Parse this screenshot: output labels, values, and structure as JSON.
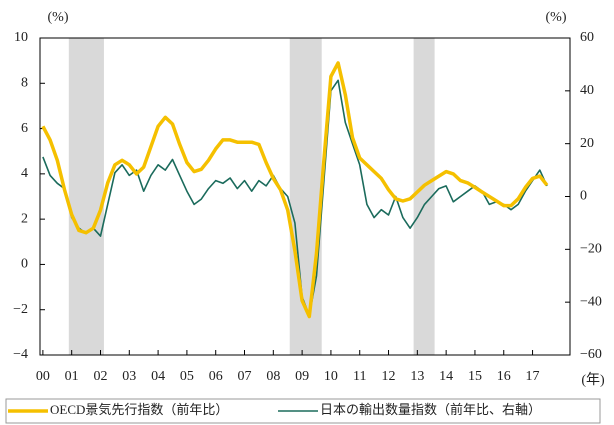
{
  "chart_data": {
    "type": "line",
    "y_unit": "(%)",
    "y2_unit": "(%)",
    "x_unit": "(年)",
    "xlim": [
      1999.9,
      2018.3
    ],
    "xticks": [
      {
        "value": 2000,
        "label": "00"
      },
      {
        "value": 2001,
        "label": "01"
      },
      {
        "value": 2002,
        "label": "02"
      },
      {
        "value": 2003,
        "label": "03"
      },
      {
        "value": 2004,
        "label": "04"
      },
      {
        "value": 2005,
        "label": "05"
      },
      {
        "value": 2006,
        "label": "06"
      },
      {
        "value": 2007,
        "label": "07"
      },
      {
        "value": 2008,
        "label": "08"
      },
      {
        "value": 2009,
        "label": "09"
      },
      {
        "value": 2010,
        "label": "10"
      },
      {
        "value": 2011,
        "label": "11"
      },
      {
        "value": 2012,
        "label": "12"
      },
      {
        "value": 2013,
        "label": "13"
      },
      {
        "value": 2014,
        "label": "14"
      },
      {
        "value": 2015,
        "label": "15"
      },
      {
        "value": 2016,
        "label": "16"
      },
      {
        "value": 2017,
        "label": "17"
      }
    ],
    "ylim": [
      -4,
      10
    ],
    "yticks": [
      {
        "value": -4,
        "label": "−4"
      },
      {
        "value": -2,
        "label": "−2"
      },
      0,
      2,
      4,
      6,
      8,
      10
    ],
    "y2lim": [
      -60,
      60
    ],
    "y2ticks": [
      {
        "value": -60,
        "label": "−60"
      },
      {
        "value": -40,
        "label": "−40"
      },
      {
        "value": -20,
        "label": "−20"
      },
      0,
      20,
      40,
      60
    ],
    "shade_color": "#d9d9d9",
    "shaded_periods": [
      [
        2000.9,
        2002.12
      ],
      [
        2008.57,
        2009.68
      ],
      [
        2012.87,
        2013.6
      ]
    ],
    "x": [
      2000,
      2000.25,
      2000.5,
      2000.75,
      2001,
      2001.25,
      2001.5,
      2001.75,
      2002,
      2002.25,
      2002.5,
      2002.75,
      2003,
      2003.25,
      2003.5,
      2003.75,
      2004,
      2004.25,
      2004.5,
      2004.75,
      2005,
      2005.25,
      2005.5,
      2005.75,
      2006,
      2006.25,
      2006.5,
      2006.75,
      2007,
      2007.25,
      2007.5,
      2007.75,
      2008,
      2008.25,
      2008.5,
      2008.75,
      2009,
      2009.25,
      2009.5,
      2009.75,
      2010,
      2010.25,
      2010.5,
      2010.75,
      2011,
      2011.25,
      2011.5,
      2011.75,
      2012,
      2012.25,
      2012.5,
      2012.75,
      2013,
      2013.25,
      2013.5,
      2013.75,
      2014,
      2014.25,
      2014.5,
      2014.75,
      2015,
      2015.25,
      2015.5,
      2015.75,
      2016,
      2016.25,
      2016.5,
      2016.75,
      2017,
      2017.25,
      2017.5
    ],
    "series": [
      {
        "name": "OECD景気先行指数（前年比）",
        "color": "#f5c000",
        "width": 3.5,
        "values": [
          6.1,
          5.5,
          4.6,
          3.3,
          2.2,
          1.5,
          1.4,
          1.6,
          2.4,
          3.6,
          4.4,
          4.6,
          4.4,
          4.0,
          4.3,
          5.2,
          6.1,
          6.5,
          6.2,
          5.3,
          4.5,
          4.1,
          4.2,
          4.6,
          5.1,
          5.5,
          5.5,
          5.4,
          5.4,
          5.4,
          5.3,
          4.5,
          3.8,
          3.3,
          2.4,
          0.6,
          -1.6,
          -2.3,
          0.5,
          4.5,
          8.3,
          8.9,
          7.5,
          5.6,
          4.7,
          4.4,
          4.1,
          3.8,
          3.3,
          2.9,
          2.8,
          2.9,
          3.2,
          3.5,
          3.7,
          3.9,
          4.1,
          4.0,
          3.7,
          3.6,
          3.4,
          3.2,
          3.0,
          2.8,
          2.6,
          2.6,
          2.9,
          3.4,
          3.8,
          3.9,
          3.5
        ]
      },
      {
        "name": "日本の輸出数量指数（前年比、右軸）",
        "color": "#1b6b5c",
        "width": 1.6,
        "axis": "y2",
        "values": [
          15,
          8,
          5,
          3,
          -8,
          -12,
          -14,
          -12,
          -15,
          -3,
          9,
          12,
          8,
          10,
          2,
          8,
          12,
          10,
          14,
          8,
          2,
          -3,
          -1,
          3,
          6,
          5,
          7,
          3,
          6,
          2,
          6,
          4,
          8,
          3,
          0,
          -10,
          -38,
          -45,
          -30,
          5,
          40,
          44,
          28,
          20,
          12,
          -3,
          -8,
          -5,
          -7,
          0,
          -8,
          -12,
          -8,
          -3,
          0,
          3,
          4,
          -2,
          0,
          2,
          4,
          2,
          -3,
          -2,
          -3,
          -5,
          -3,
          2,
          6,
          10,
          4
        ]
      }
    ]
  }
}
